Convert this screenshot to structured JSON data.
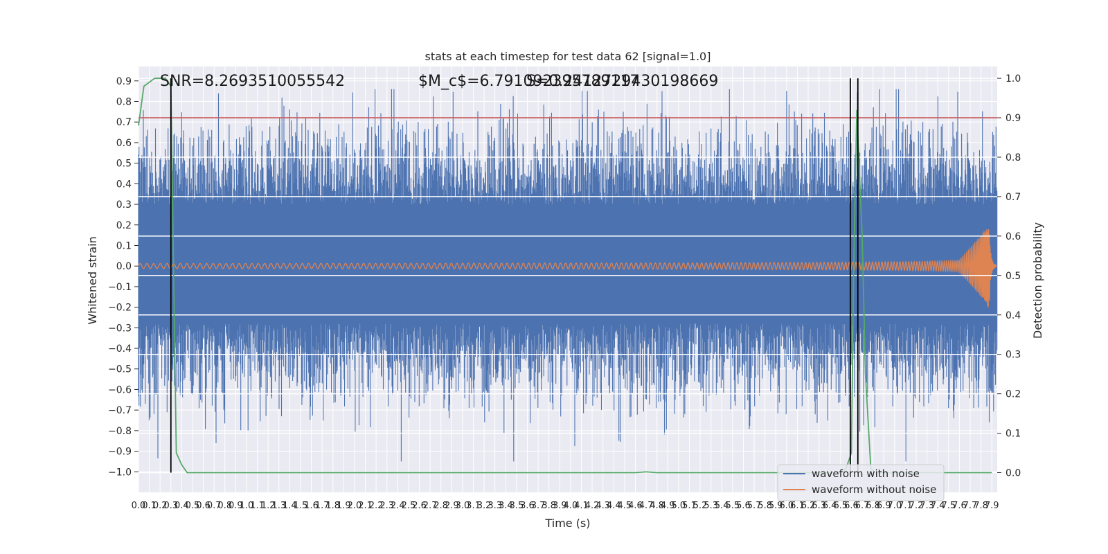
{
  "chart_data": {
    "type": "line",
    "title": "stats at each timestep for test data 62 [signal=1.0]",
    "xlabel": "Time (s)",
    "ylabel": "Whitened strain",
    "y2label": "Detection probability",
    "xlim": [
      0.0,
      7.95
    ],
    "ylim": [
      -1.1,
      0.97
    ],
    "y2lim": [
      -0.05,
      1.03
    ],
    "xticks": [
      "0.0",
      "0.1",
      "0.2",
      "0.3",
      "0.4",
      "0.5",
      "0.6",
      "0.7",
      "0.8",
      "0.9",
      "1.0",
      "1.1",
      "1.2",
      "1.3",
      "1.4",
      "1.5",
      "1.6",
      "1.7",
      "1.8",
      "1.9",
      "2.0",
      "2.1",
      "2.2",
      "2.3",
      "2.4",
      "2.5",
      "2.6",
      "2.7",
      "2.8",
      "2.9",
      "3.0",
      "3.1",
      "3.2",
      "3.3",
      "3.4",
      "3.5",
      "3.6",
      "3.7",
      "3.8",
      "3.9",
      "4.0",
      "4.1",
      "4.2",
      "4.3",
      "4.4",
      "4.5",
      "4.6",
      "4.7",
      "4.8",
      "4.9",
      "5.0",
      "5.1",
      "5.2",
      "5.3",
      "5.4",
      "5.5",
      "5.6",
      "5.7",
      "5.8",
      "5.9",
      "6.0",
      "6.1",
      "6.2",
      "6.3",
      "6.4",
      "6.5",
      "6.6",
      "6.7",
      "6.8",
      "6.9",
      "7.0",
      "7.1",
      "7.2",
      "7.3",
      "7.4",
      "7.5",
      "7.6",
      "7.7",
      "7.8",
      "7.9"
    ],
    "yticks": [
      "0.9",
      "0.8",
      "0.7",
      "0.6",
      "0.5",
      "0.4",
      "0.3",
      "0.2",
      "0.1",
      "0.0",
      "−0.1",
      "−0.2",
      "−0.3",
      "−0.4",
      "−0.5",
      "−0.6",
      "−0.7",
      "−0.8",
      "−0.9",
      "−1.0"
    ],
    "y2ticks": [
      "1.0",
      "0.9",
      "0.8",
      "0.7",
      "0.6",
      "0.5",
      "0.4",
      "0.3",
      "0.2",
      "0.1",
      "0.0"
    ],
    "series": [
      {
        "name": "waveform with noise",
        "color": "#4c72b0",
        "envelope_range": [
          -0.95,
          0.86
        ]
      },
      {
        "name": "waveform without noise",
        "color": "#dd8452",
        "peak_amplitude": 0.26,
        "merger_time": 7.88
      },
      {
        "name": "detection probability",
        "color": "#55a868",
        "axis": "right",
        "x": [
          0.0,
          0.05,
          0.1,
          0.15,
          0.2,
          0.25,
          0.3,
          0.35,
          0.4,
          0.45,
          0.5,
          1.0,
          2.0,
          3.0,
          4.0,
          4.6,
          4.7,
          4.8,
          5.0,
          6.0,
          6.5,
          6.55,
          6.6,
          6.62,
          6.65,
          6.7,
          6.73,
          6.78,
          6.83,
          7.0,
          7.5,
          7.9
        ],
        "y": [
          0.88,
          0.98,
          0.99,
          1.0,
          1.0,
          1.0,
          0.98,
          0.05,
          0.02,
          0.0,
          0.0,
          0.0,
          0.0,
          0.0,
          0.0,
          0.0,
          0.002,
          0.0,
          0.0,
          0.0,
          0.0,
          0.01,
          0.05,
          0.5,
          0.92,
          0.6,
          0.25,
          0.01,
          0.0,
          0.0,
          0.0,
          0.0
        ]
      }
    ],
    "threshold": {
      "value": 0.9,
      "color": "#c44e52"
    },
    "vlines": [
      0.3,
      6.59,
      6.66
    ],
    "annotations": [
      "SNR=8.2693510055542",
      "$M_c$=6.791092395789117",
      "S=0.2412729430198669"
    ],
    "legend": {
      "position": "bottom-right",
      "entries": [
        "waveform with noise",
        "waveform without noise"
      ]
    }
  }
}
